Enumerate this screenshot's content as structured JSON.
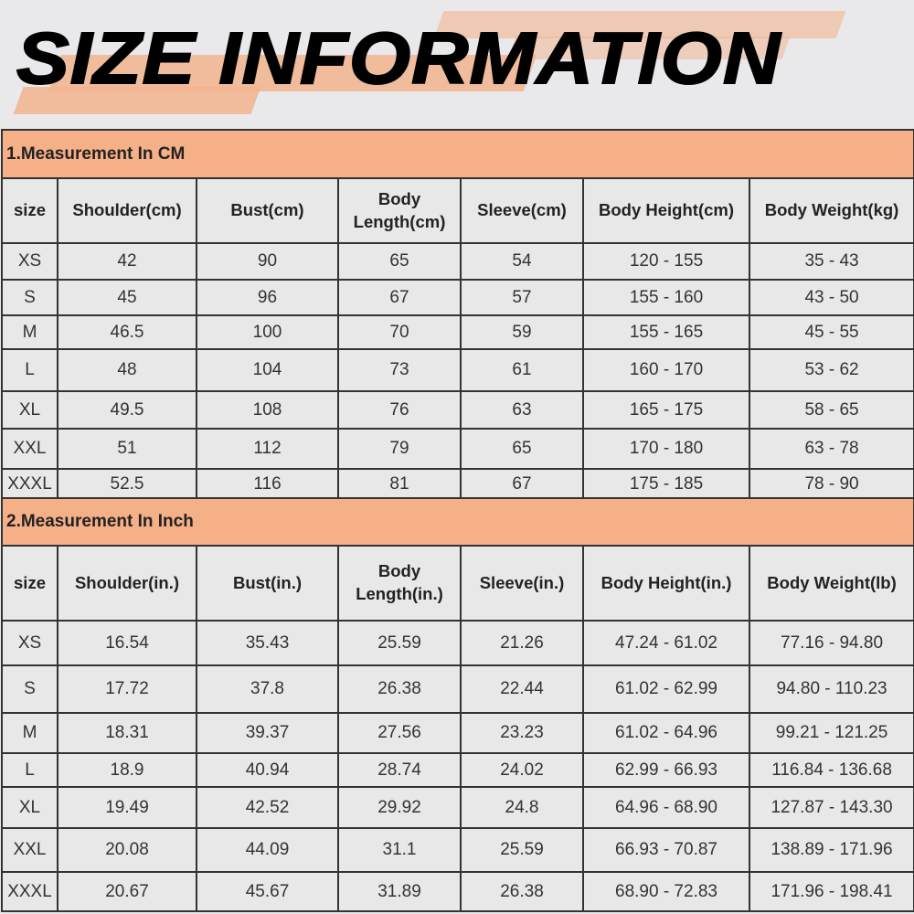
{
  "title": "SIZE INFORMATION",
  "colors": {
    "section_header": "#f5b088",
    "cell_bg": "#e8e8e8",
    "border": "#333333",
    "brush": "#f2b48e"
  },
  "tables": [
    {
      "section": "1.Measurement In CM",
      "headers": [
        "size",
        "Shoulder(cm)",
        "Bust(cm)",
        "Body Length(cm)",
        "Sleeve(cm)",
        "Body Height(cm)",
        "Body Weight(kg)"
      ],
      "rows": [
        [
          "XS",
          "42",
          "90",
          "65",
          "54",
          "120 - 155",
          "35 - 43"
        ],
        [
          "S",
          "45",
          "96",
          "67",
          "57",
          "155 - 160",
          "43 - 50"
        ],
        [
          "M",
          "46.5",
          "100",
          "70",
          "59",
          "155 - 165",
          "45 - 55"
        ],
        [
          "L",
          "48",
          "104",
          "73",
          "61",
          "160 - 170",
          "53 - 62"
        ],
        [
          "XL",
          "49.5",
          "108",
          "76",
          "63",
          "165 - 175",
          "58 - 65"
        ],
        [
          "XXL",
          "51",
          "112",
          "79",
          "65",
          "170 - 180",
          "63 - 78"
        ],
        [
          "XXXL",
          "52.5",
          "116",
          "81",
          "67",
          "175 - 185",
          "78 - 90"
        ]
      ]
    },
    {
      "section": "2.Measurement In Inch",
      "headers": [
        "size",
        "Shoulder(in.)",
        "Bust(in.)",
        "Body Length(in.)",
        "Sleeve(in.)",
        "Body Height(in.)",
        "Body Weight(lb)"
      ],
      "rows": [
        [
          "XS",
          "16.54",
          "35.43",
          "25.59",
          "21.26",
          "47.24 - 61.02",
          "77.16 - 94.80"
        ],
        [
          "S",
          "17.72",
          "37.8",
          "26.38",
          "22.44",
          "61.02 - 62.99",
          "94.80 - 110.23"
        ],
        [
          "M",
          "18.31",
          "39.37",
          "27.56",
          "23.23",
          "61.02 - 64.96",
          "99.21 - 121.25"
        ],
        [
          "L",
          "18.9",
          "40.94",
          "28.74",
          "24.02",
          "62.99 - 66.93",
          "116.84 - 136.68"
        ],
        [
          "XL",
          "19.49",
          "42.52",
          "29.92",
          "24.8",
          "64.96 - 68.90",
          "127.87 - 143.30"
        ],
        [
          "XXL",
          "20.08",
          "44.09",
          "31.1",
          "25.59",
          "66.93 - 70.87",
          "138.89 - 171.96"
        ],
        [
          "XXXL",
          "20.67",
          "45.67",
          "31.89",
          "26.38",
          "68.90 - 72.83",
          "171.96 - 198.41"
        ]
      ]
    }
  ]
}
